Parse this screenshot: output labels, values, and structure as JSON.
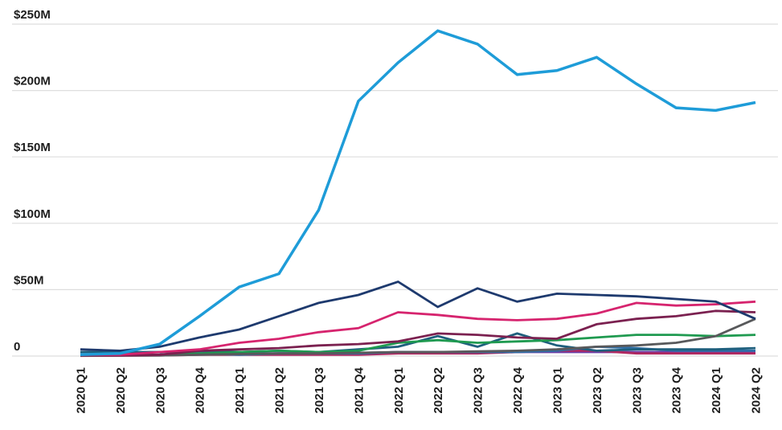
{
  "chart_data": {
    "type": "line",
    "title": "",
    "unit": "USD millions",
    "x_labels": [
      "2020 Q1",
      "2020 Q2",
      "2020 Q3",
      "2020 Q4",
      "2021 Q1",
      "2021 Q2",
      "2021 Q3",
      "2021 Q4",
      "2022 Q1",
      "2022 Q2",
      "2022 Q3",
      "2022 Q4",
      "2023 Q1",
      "2023 Q2",
      "2023 Q3",
      "2023 Q4",
      "2024 Q1",
      "2024 Q2"
    ],
    "y_tick_labels": [
      "$250M",
      "$200M",
      "$150M",
      "$100M",
      "$50M",
      "0"
    ],
    "y_tick_values": [
      250,
      200,
      150,
      100,
      50,
      0
    ],
    "ylim": [
      0,
      250
    ],
    "grid": "horizontal-only",
    "legend_position": "none",
    "gridline_color": "#dedede",
    "label_color": "#1d1d1d",
    "series": [
      {
        "name": "purple",
        "color": "#6A3DA8",
        "values": [
          0.3,
          0.5,
          1,
          3,
          2,
          2,
          2,
          2,
          3,
          3,
          3,
          3,
          3,
          3,
          3,
          3,
          3,
          3
        ]
      },
      {
        "name": "crimson",
        "color": "#B02860",
        "values": [
          0.2,
          0.3,
          0.5,
          1,
          1,
          1,
          1,
          1,
          2,
          2,
          2,
          3,
          4,
          4,
          2,
          2,
          2,
          2
        ]
      },
      {
        "name": "medium-blue",
        "color": "#2E6FA8",
        "values": [
          0.5,
          1,
          1,
          2,
          1,
          2,
          2,
          2,
          3,
          3,
          3,
          3,
          4,
          7,
          6,
          4,
          4,
          4
        ]
      },
      {
        "name": "dark-teal",
        "color": "#1E5F7D",
        "values": [
          3,
          3,
          3,
          4,
          3,
          4,
          3,
          5,
          7,
          15,
          7,
          17,
          8,
          4,
          5,
          5,
          5,
          6
        ]
      },
      {
        "name": "green",
        "color": "#1F9A50",
        "values": [
          0.3,
          0.5,
          1,
          2,
          3,
          4,
          3,
          4,
          10,
          12,
          10,
          11,
          12,
          14,
          16,
          16,
          15,
          16
        ]
      },
      {
        "name": "gray",
        "color": "#58595B",
        "values": [
          0.3,
          0.4,
          0.5,
          1,
          1.5,
          2,
          2,
          2.5,
          3,
          3,
          3.5,
          4,
          5,
          7,
          8,
          10,
          15,
          28
        ]
      },
      {
        "name": "maroon",
        "color": "#7B2150",
        "values": [
          0.5,
          0.5,
          1,
          4,
          5,
          6,
          8,
          9,
          11,
          17,
          16,
          14,
          13,
          24,
          28,
          30,
          34,
          33
        ]
      },
      {
        "name": "pink-magenta",
        "color": "#D6246E",
        "values": [
          1,
          1,
          3,
          5,
          10,
          13,
          18,
          21,
          33,
          31,
          28,
          27,
          28,
          32,
          40,
          38,
          39,
          41
        ]
      },
      {
        "name": "navy",
        "color": "#1E3A6E",
        "values": [
          5,
          4,
          7,
          14,
          20,
          30,
          40,
          46,
          56,
          37,
          51,
          41,
          47,
          46,
          45,
          43,
          41,
          28
        ]
      },
      {
        "name": "light-blue",
        "color": "#1E9CD8",
        "values": [
          1,
          2,
          9,
          30,
          52,
          62,
          110,
          192,
          221,
          245,
          235,
          212,
          215,
          225,
          205,
          187,
          185,
          191
        ]
      }
    ]
  }
}
